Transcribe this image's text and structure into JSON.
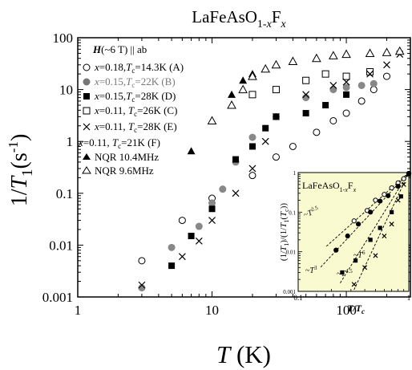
{
  "chart_data": [
    {
      "type": "scatter",
      "title": "LaFeAsO1-xFx",
      "xlabel": "T (K)",
      "ylabel": "1/T1(s-1)",
      "xscale": "log",
      "yscale": "log",
      "xlim": [
        1,
        300
      ],
      "ylim": [
        0.001,
        100
      ],
      "xticks": [
        "1",
        "10",
        "100"
      ],
      "yticks": [
        "0.001",
        "0.01",
        "0.1",
        "1",
        "10",
        "100"
      ],
      "legend_header": "H(~6 T) || ab",
      "legend_position": "top-left",
      "series": [
        {
          "name": "x=0.18, Tc=14.3K (A)",
          "marker": "circle-open",
          "color": "#000000",
          "x": [
            3,
            6,
            10,
            20,
            30,
            40,
            60,
            80,
            100,
            130,
            160,
            200
          ],
          "y": [
            0.005,
            0.03,
            0.08,
            0.22,
            0.5,
            0.8,
            1.5,
            2.5,
            3.5,
            6,
            10,
            18
          ]
        },
        {
          "name": "x=0.15, Tc=22K (B)",
          "marker": "circle-filled",
          "color": "#888888",
          "x": [
            3,
            5,
            8,
            10,
            12,
            15,
            20,
            30,
            50,
            80,
            100,
            130,
            160
          ],
          "y": [
            0.0015,
            0.009,
            0.023,
            0.065,
            0.12,
            0.4,
            1.2,
            3,
            7,
            10,
            11,
            12,
            13
          ]
        },
        {
          "name": "x=0.15, Tc=28K (D)",
          "marker": "square-filled",
          "color": "#000000",
          "x": [
            5,
            7,
            10,
            15,
            20,
            25,
            30,
            50,
            70,
            100
          ],
          "y": [
            0.004,
            0.015,
            0.05,
            0.45,
            0.8,
            1.8,
            3,
            3.5,
            5,
            8
          ]
        },
        {
          "name": "x=0.11, Tc=26K (C)",
          "marker": "square-open",
          "color": "#000000",
          "x": [
            20,
            30,
            50,
            70,
            100,
            150
          ],
          "y": [
            8,
            10,
            15,
            20,
            18,
            22
          ]
        },
        {
          "name": "x=0.11, Tc=28K (E)",
          "marker": "cross",
          "color": "#000000",
          "x": [
            3,
            6,
            8,
            10,
            15,
            20,
            25,
            30,
            50,
            80,
            100,
            150,
            200,
            250
          ],
          "y": [
            0.0017,
            0.006,
            0.012,
            0.03,
            0.1,
            0.3,
            1,
            3,
            8,
            12,
            14,
            20,
            30,
            48
          ]
        },
        {
          "name": "NQR 10.4MHz",
          "marker": "triangle-filled",
          "color": "#000000",
          "x": [
            7,
            10,
            14,
            17,
            20,
            25,
            30
          ],
          "y": [
            0.65,
            2.5,
            8,
            15,
            20,
            25,
            30
          ]
        },
        {
          "name": "NQR 9.6MHz",
          "marker": "triangle-open",
          "color": "#000000",
          "x": [
            10,
            14,
            17,
            20,
            25,
            30,
            40,
            60,
            80,
            100,
            150,
            200,
            250
          ],
          "y": [
            2.5,
            5,
            10,
            18,
            25,
            30,
            35,
            40,
            45,
            48,
            50,
            52,
            55
          ]
        }
      ]
    },
    {
      "type": "scatter",
      "title": "LaFeAsO1-xFx",
      "xlabel": "T/Tc",
      "ylabel": "(1/T1)/(1/T1(Tc))",
      "xscale": "log",
      "yscale": "log",
      "xlim": [
        0.1,
        1
      ],
      "ylim": [
        0.001,
        1
      ],
      "xticks": [
        "0.1",
        "1"
      ],
      "yticks": [
        "0.001",
        "0.01",
        "0.1",
        "1"
      ],
      "background": "#fafad0",
      "annotations": [
        "~T2.5",
        "~T3",
        "~T4.5",
        "~T6"
      ],
      "series": [
        {
          "marker": "circle-open",
          "x": [
            0.32,
            0.42,
            0.5,
            0.6,
            0.7,
            0.8,
            0.9,
            1.0
          ],
          "y": [
            0.06,
            0.11,
            0.2,
            0.28,
            0.41,
            0.55,
            0.7,
            0.95
          ]
        },
        {
          "marker": "circle-filled",
          "x": [
            0.22,
            0.28,
            0.35,
            0.45,
            0.55,
            0.65,
            0.8,
            1.0
          ],
          "y": [
            0.011,
            0.025,
            0.05,
            0.1,
            0.19,
            0.26,
            0.45,
            0.95
          ]
        },
        {
          "marker": "square-filled",
          "x": [
            0.25,
            0.33,
            0.45,
            0.55,
            0.7,
            0.85,
            1.0
          ],
          "y": [
            0.003,
            0.006,
            0.02,
            0.04,
            0.1,
            0.25,
            0.9
          ]
        },
        {
          "marker": "cross",
          "x": [
            0.32,
            0.4,
            0.5,
            0.6,
            0.7,
            0.8,
            0.9
          ],
          "y": [
            0.0015,
            0.004,
            0.008,
            0.025,
            0.05,
            0.2,
            0.5
          ]
        }
      ],
      "fit_lines": [
        {
          "label": "~T2.5",
          "exponent": 2.5,
          "x_from": 0.18
        },
        {
          "label": "~T3",
          "exponent": 3,
          "x_from": 0.16
        },
        {
          "label": "~T4.5",
          "exponent": 4.5,
          "x_from": 0.24
        },
        {
          "label": "~T6",
          "exponent": 6,
          "x_from": 0.32
        }
      ]
    }
  ]
}
